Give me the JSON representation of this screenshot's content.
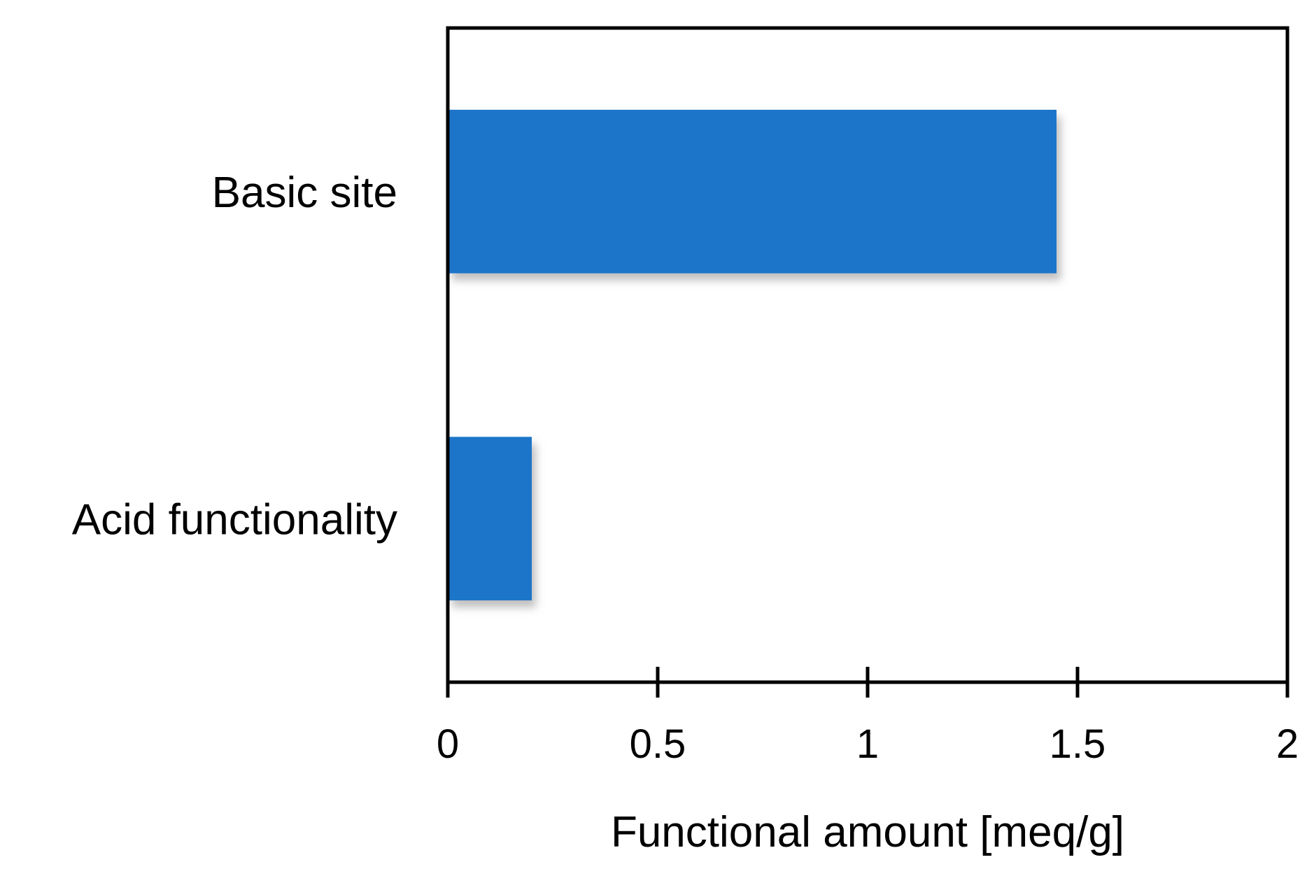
{
  "chart_data": {
    "type": "bar",
    "orientation": "horizontal",
    "categories": [
      "Basic site",
      "Acid functionality"
    ],
    "values": [
      1.45,
      0.2
    ],
    "xlabel": "Functional amount [meq/g]",
    "ylabel": "",
    "xlim": [
      0,
      2
    ],
    "xticks": [
      0,
      0.5,
      1,
      1.5,
      2
    ],
    "xtick_labels": [
      "0",
      "0.5",
      "1",
      "1.5",
      "2"
    ],
    "grid": false,
    "legend": "none",
    "colors": {
      "bar": "#1b74c9",
      "axis": "#000000",
      "shadow": "#9a9a9a"
    }
  }
}
